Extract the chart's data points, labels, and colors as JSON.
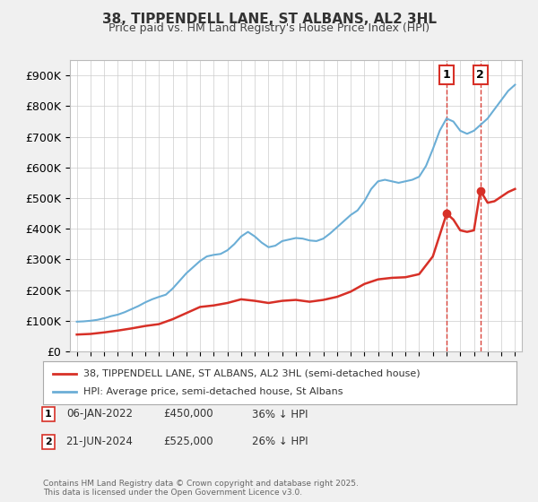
{
  "title": "38, TIPPENDELL LANE, ST ALBANS, AL2 3HL",
  "subtitle": "Price paid vs. HM Land Registry's House Price Index (HPI)",
  "ylabel": "",
  "ylim": [
    0,
    950000
  ],
  "yticks": [
    0,
    100000,
    200000,
    300000,
    400000,
    500000,
    600000,
    700000,
    800000,
    900000
  ],
  "ytick_labels": [
    "£0",
    "£100K",
    "£200K",
    "£300K",
    "£400K",
    "£500K",
    "£600K",
    "£700K",
    "£800K",
    "£900K"
  ],
  "hpi_color": "#6baed6",
  "price_color": "#d73027",
  "marker1_date_idx": 0,
  "marker2_date_idx": 1,
  "sale1_label": "1",
  "sale2_label": "2",
  "sale1_date": "06-JAN-2022",
  "sale1_price": "£450,000",
  "sale1_hpi": "36% ↓ HPI",
  "sale2_date": "21-JUN-2024",
  "sale2_price": "£525,000",
  "sale2_hpi": "26% ↓ HPI",
  "legend_line1": "38, TIPPENDELL LANE, ST ALBANS, AL2 3HL (semi-detached house)",
  "legend_line2": "HPI: Average price, semi-detached house, St Albans",
  "footer": "Contains HM Land Registry data © Crown copyright and database right 2025.\nThis data is licensed under the Open Government Licence v3.0.",
  "background_color": "#f0f0f0",
  "plot_bg_color": "#ffffff",
  "grid_color": "#cccccc"
}
